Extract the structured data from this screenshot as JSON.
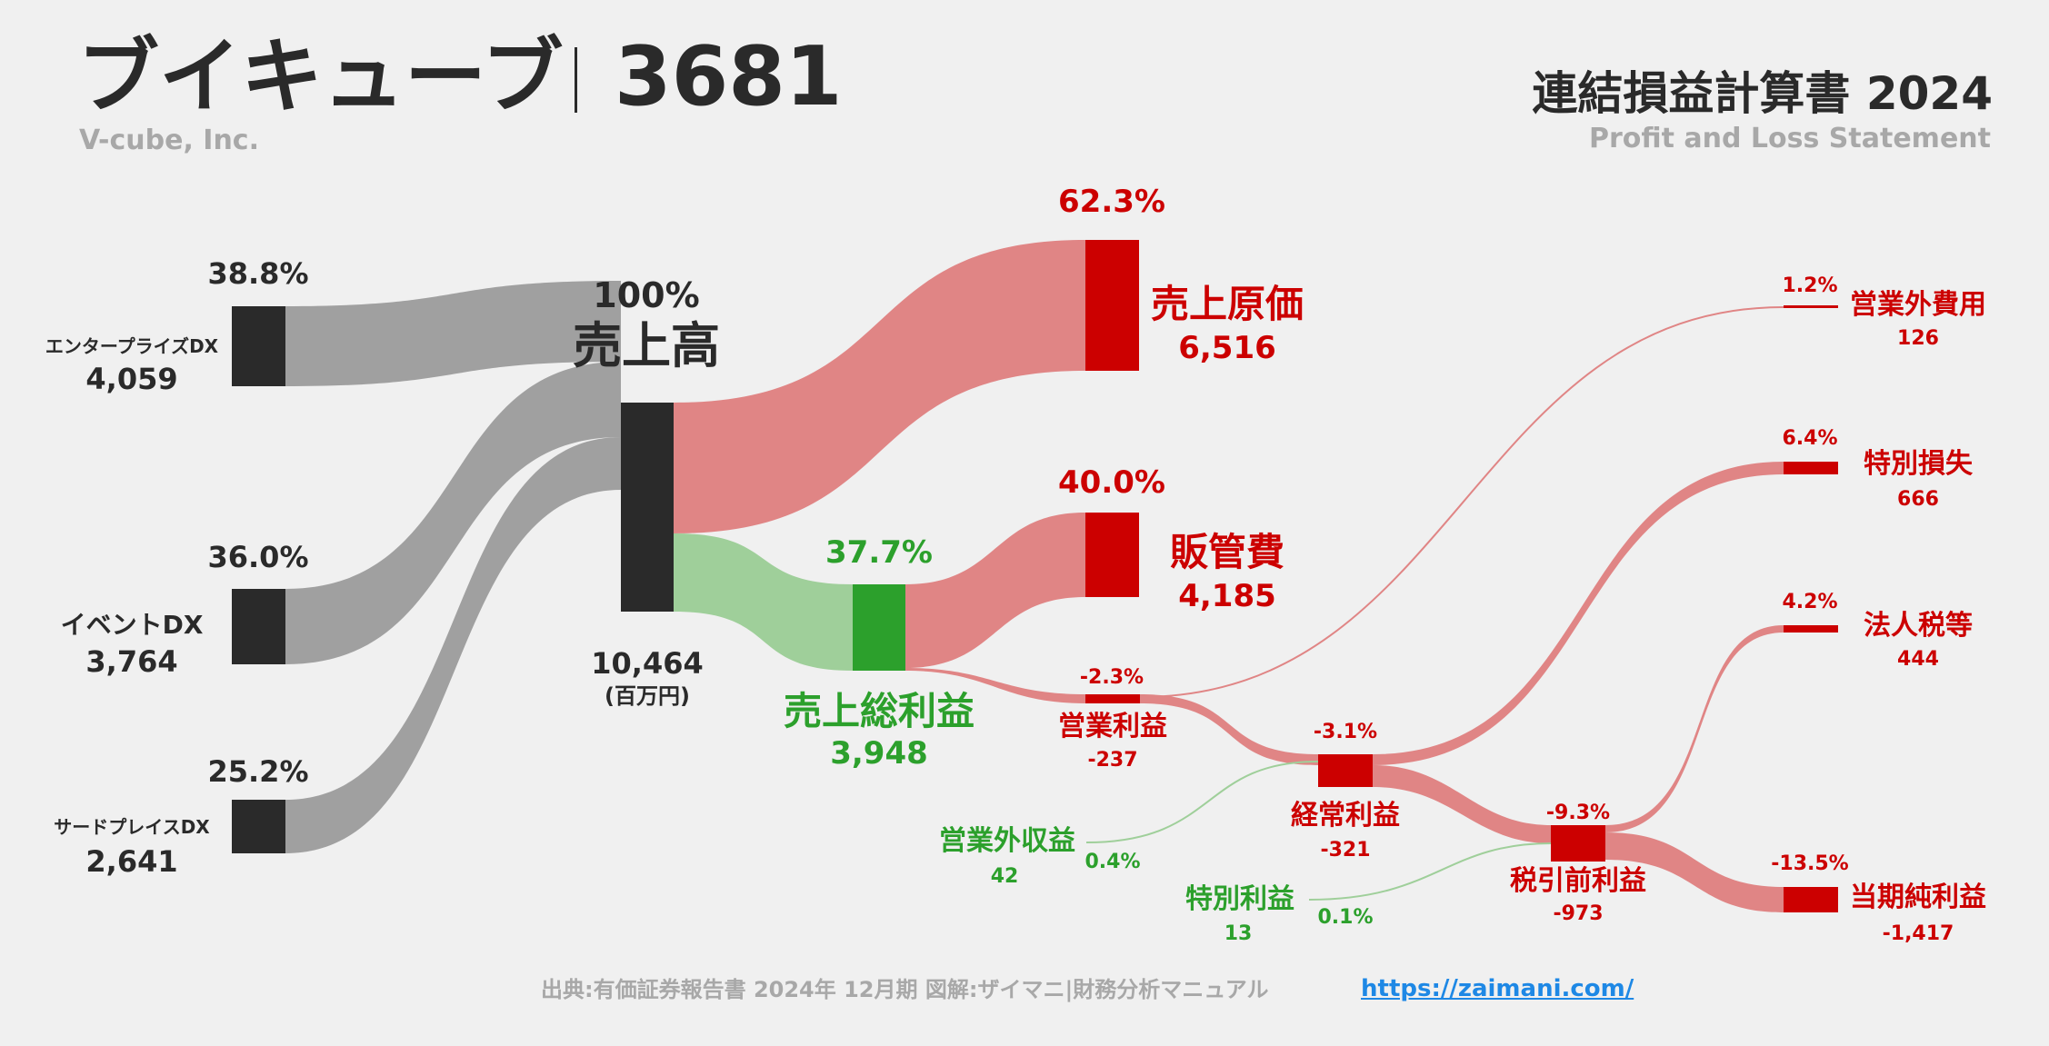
{
  "header": {
    "company_ja": "ブイキューブ",
    "separator": "|",
    "ticker": "3681",
    "company_en": "V-cube, Inc.",
    "statement_ja": "連結損益計算書 2024",
    "statement_en": "Profit and Loss Statement"
  },
  "revenue_segments": [
    {
      "name": "エンタープライズDX",
      "value": "4,059",
      "pct": "38.8%"
    },
    {
      "name": "イベントDX",
      "value": "3,764",
      "pct": "36.0%"
    },
    {
      "name": "サードプレイスDX",
      "value": "2,641",
      "pct": "25.2%"
    }
  ],
  "revenue": {
    "pct": "100%",
    "label": "売上高",
    "value": "10,464",
    "unit": "(百万円)"
  },
  "cost_of_sales": {
    "pct": "62.3%",
    "label": "売上原価",
    "value": "6,516"
  },
  "gross_profit": {
    "pct": "37.7%",
    "label": "売上総利益",
    "value": "3,948"
  },
  "sga": {
    "pct": "40.0%",
    "label": "販管費",
    "value": "4,185"
  },
  "operating_profit": {
    "pct": "-2.3%",
    "label": "営業利益",
    "value": "-237"
  },
  "non_operating_expense": {
    "pct": "1.2%",
    "label": "営業外費用",
    "value": "126"
  },
  "non_operating_income": {
    "pct": "0.4%",
    "label": "営業外収益",
    "value": "42"
  },
  "ordinary_profit": {
    "pct": "-3.1%",
    "label": "経常利益",
    "value": "-321"
  },
  "extraordinary_loss": {
    "pct": "6.4%",
    "label": "特別損失",
    "value": "666"
  },
  "extraordinary_income": {
    "pct": "0.1%",
    "label": "特別利益",
    "value": "13"
  },
  "pretax_profit": {
    "pct": "-9.3%",
    "label": "税引前利益",
    "value": "-973"
  },
  "income_taxes": {
    "pct": "4.2%",
    "label": "法人税等",
    "value": "444"
  },
  "net_income": {
    "pct": "-13.5%",
    "label": "当期純利益",
    "value": "-1,417"
  },
  "footer": {
    "source": "出典:有価証券報告書 2024年 12月期 図解:ザイマニ|財務分析マニュアル",
    "link": "https://zaimani.com/"
  },
  "colors": {
    "background": "#f0f0f0",
    "node_dark": "#2a2a2a",
    "node_red": "#cc0000",
    "node_green": "#2ca02c",
    "flow_gray": "#a0a0a0",
    "flow_red": "#e08585",
    "flow_green": "#9fcf9a",
    "link_blue": "#1e88e5"
  }
}
